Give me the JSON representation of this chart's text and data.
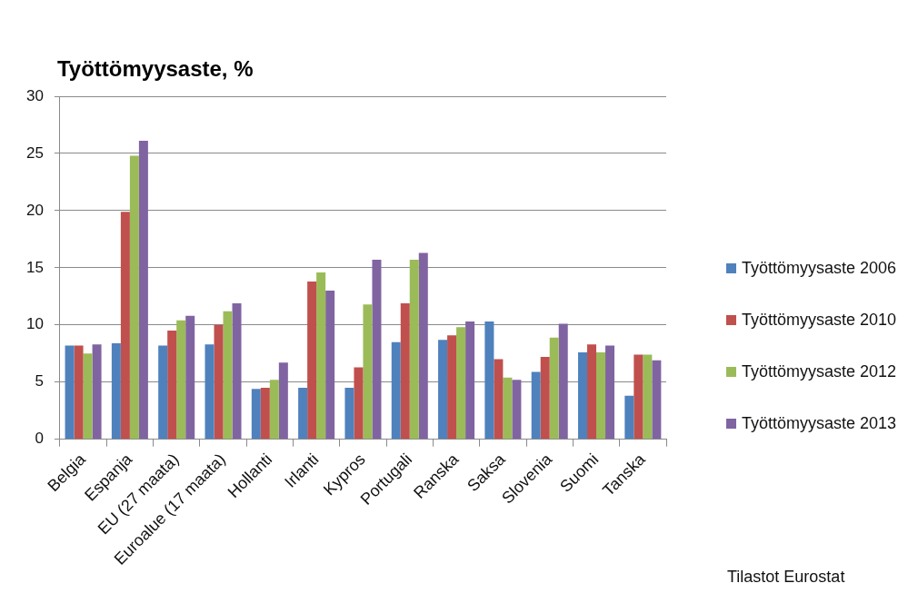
{
  "chart_data": {
    "type": "bar",
    "title": "Työttömyysaste, %",
    "categories": [
      "Belgia",
      "Espanja",
      "EU (27 maata)",
      "Euroalue (17 maata)",
      "Hollanti",
      "Irlanti",
      "Kypros",
      "Portugali",
      "Ranska",
      "Saksa",
      "Slovenia",
      "Suomi",
      "Tanska"
    ],
    "series": [
      {
        "name": "Työttömyysaste 2006",
        "color": "#4f81bd",
        "values": [
          8.2,
          8.4,
          8.2,
          8.3,
          4.4,
          4.5,
          4.5,
          8.5,
          8.7,
          10.3,
          5.9,
          7.6,
          3.8
        ]
      },
      {
        "name": "Työttömyysaste 2010",
        "color": "#c0504d",
        "values": [
          8.2,
          19.9,
          9.5,
          10.0,
          4.5,
          13.8,
          6.3,
          11.9,
          9.1,
          7.0,
          7.2,
          8.3,
          7.4
        ]
      },
      {
        "name": "Työttömyysaste 2012",
        "color": "#9bbb59",
        "values": [
          7.5,
          24.8,
          10.4,
          11.2,
          5.2,
          14.6,
          11.8,
          15.7,
          9.8,
          5.4,
          8.9,
          7.6,
          7.4
        ]
      },
      {
        "name": "Työttömyysaste 2013",
        "color": "#8064a2",
        "values": [
          8.3,
          26.1,
          10.8,
          11.9,
          6.7,
          13.0,
          15.7,
          16.3,
          10.3,
          5.2,
          10.1,
          8.2,
          6.9
        ]
      }
    ],
    "ylim": [
      0,
      30
    ],
    "yticks": [
      0,
      5,
      10,
      15,
      20,
      25,
      30
    ],
    "grid": "y",
    "legend": "right",
    "annotations": [
      "Tilastot Eurostat"
    ]
  }
}
